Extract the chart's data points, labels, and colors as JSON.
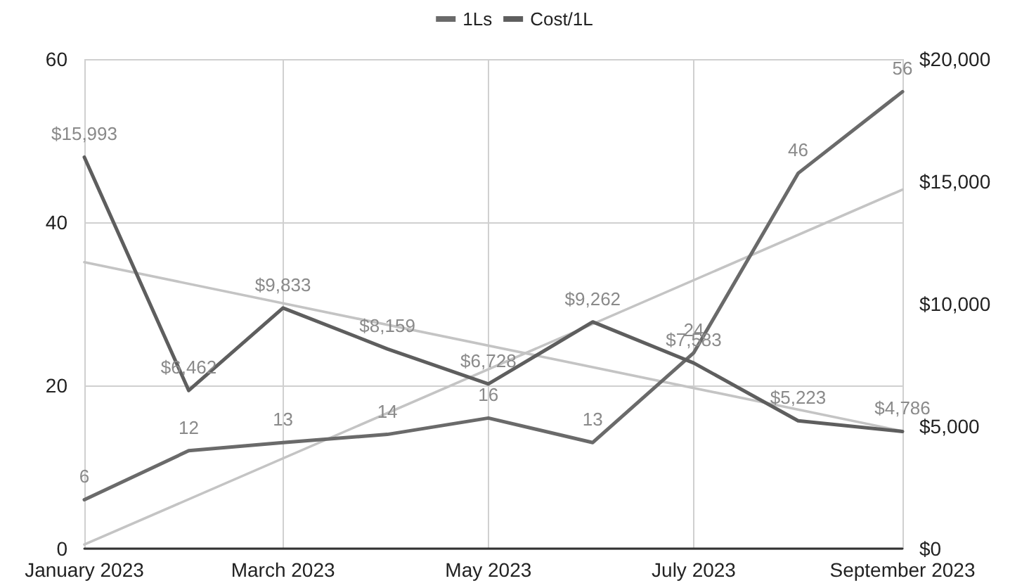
{
  "chart_data": {
    "type": "line",
    "x": [
      "2023-01",
      "2023-02",
      "2023-03",
      "2023-04",
      "2023-05",
      "2023-06",
      "2023-07",
      "2023-08",
      "2023-09"
    ],
    "xlim": [
      "2023-01",
      "2023-09"
    ],
    "xticks": [
      {
        "value": "2023-01",
        "label": "January 2023"
      },
      {
        "value": "2023-03",
        "label": "March 2023"
      },
      {
        "value": "2023-05",
        "label": "May 2023"
      },
      {
        "value": "2023-07",
        "label": "July 2023"
      },
      {
        "value": "2023-09",
        "label": "September 2023"
      }
    ],
    "ylim": [
      0,
      60
    ],
    "yticks": [
      0,
      20,
      40,
      60
    ],
    "y2lim": [
      0,
      20000
    ],
    "y2ticks": [
      {
        "value": 0,
        "label": "$0"
      },
      {
        "value": 5000,
        "label": "$5,000"
      },
      {
        "value": 10000,
        "label": "$10,000"
      },
      {
        "value": 15000,
        "label": "$15,000"
      },
      {
        "value": 20000,
        "label": "$20,000"
      }
    ],
    "series": [
      {
        "name": "1Ls",
        "color": "#6a6a6a",
        "values": [
          6,
          12,
          13,
          14,
          16,
          13,
          24,
          46,
          56
        ],
        "value_labels": [
          "6",
          "12",
          "13",
          "14",
          "16",
          "13",
          "24",
          "46",
          "56"
        ]
      },
      {
        "name": "Cost/1L",
        "color": "#5e5e5e",
        "axis": "y2",
        "values": [
          15993,
          6462,
          9833,
          8159,
          6728,
          9262,
          7583,
          5223,
          4786
        ],
        "value_labels": [
          "$15,993",
          "$6,462",
          "$9,833",
          "$8,159",
          "$6,728",
          "$9,262",
          "$7,583",
          "$5,223",
          "$4,786"
        ]
      },
      {
        "type": "line",
        "color": "#c4c4c4",
        "x": [
          "2023-01",
          "2023-09"
        ],
        "values": [
          0.5,
          44
        ]
      },
      {
        "type": "line",
        "color": "#c4c4c4",
        "axis": "y2",
        "x": [
          "2023-01",
          "2023-09"
        ],
        "values": [
          11700,
          4800
        ]
      }
    ],
    "grid": true,
    "legend": "top",
    "marker": "none",
    "line_style": "solid"
  }
}
